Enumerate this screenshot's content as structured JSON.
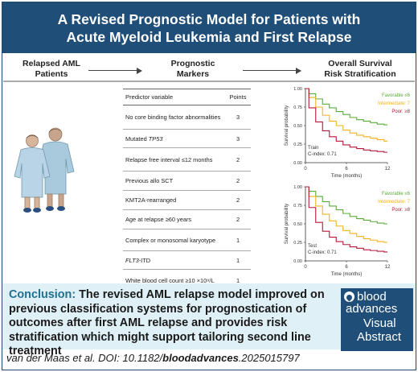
{
  "header": {
    "title_line1": "A Revised Prognostic Model for Patients with",
    "title_line2": "Acute Myeloid Leukemia and First Relapse"
  },
  "columns": {
    "left": [
      "Relapsed AML",
      "Patients"
    ],
    "middle": [
      "Prognostic",
      "Markers"
    ],
    "right": [
      "Overall Survival",
      "Risk Stratification"
    ]
  },
  "table": {
    "head_variable": "Predictor variable",
    "head_points": "Points",
    "rows": [
      {
        "name": "No core binding factor abnormalities",
        "points": "3"
      },
      {
        "name": "Mutated TP53",
        "points": "3"
      },
      {
        "name": "Relapse free interval ≤12 months",
        "points": "2"
      },
      {
        "name": "Previous allo SCT",
        "points": "2"
      },
      {
        "name": "KMT2A-rearranged",
        "points": "2"
      },
      {
        "name": "Age at relapse ≥60 years",
        "points": "2"
      },
      {
        "name": "Complex or monosomal karyotype",
        "points": "1"
      },
      {
        "name": "FLT3-ITD",
        "points": "1"
      },
      {
        "name": "White blood cell count ≥10 ×10⁹/L",
        "points": "1"
      }
    ]
  },
  "chart_data": [
    {
      "type": "line",
      "panel": "Train",
      "annotation": "C-index: 0.71",
      "xlabel": "Time (months)",
      "ylabel": "Survival probability",
      "xlim": [
        0,
        12
      ],
      "ylim": [
        0,
        1.0
      ],
      "xticks": [
        "0",
        "6",
        "12"
      ],
      "yticks": [
        "0.00",
        "0.25",
        "0.50",
        "0.75",
        "1.00"
      ],
      "legend_position": "top-right",
      "series": [
        {
          "name": "Favorable ≤6",
          "color": "#5aac3a",
          "x": [
            0,
            1,
            2,
            3,
            4,
            5,
            6,
            7,
            8,
            9,
            10,
            11,
            12
          ],
          "y": [
            1.0,
            0.93,
            0.86,
            0.79,
            0.74,
            0.69,
            0.65,
            0.61,
            0.58,
            0.56,
            0.54,
            0.52,
            0.51
          ]
        },
        {
          "name": "Intermediate: 7",
          "color": "#f2b21d",
          "x": [
            0,
            1,
            2,
            3,
            4,
            5,
            6,
            7,
            8,
            9,
            10,
            11,
            12
          ],
          "y": [
            1.0,
            0.88,
            0.75,
            0.64,
            0.56,
            0.5,
            0.44,
            0.4,
            0.37,
            0.35,
            0.33,
            0.31,
            0.29
          ]
        },
        {
          "name": "Poor: ≥8",
          "color": "#b5173a",
          "x": [
            0,
            1,
            2,
            3,
            4,
            5,
            6,
            7,
            8,
            9,
            10,
            11,
            12
          ],
          "y": [
            1.0,
            0.74,
            0.55,
            0.43,
            0.35,
            0.29,
            0.24,
            0.21,
            0.19,
            0.17,
            0.16,
            0.15,
            0.14
          ]
        }
      ]
    },
    {
      "type": "line",
      "panel": "Test",
      "annotation": "C-index: 0.71",
      "xlabel": "Time (months)",
      "ylabel": "Survival probability",
      "xlim": [
        0,
        12
      ],
      "ylim": [
        0,
        1.0
      ],
      "xticks": [
        "0",
        "6",
        "12"
      ],
      "yticks": [
        "0.00",
        "0.25",
        "0.50",
        "0.75",
        "1.00"
      ],
      "legend_position": "top-right",
      "series": [
        {
          "name": "Favorable ≤6",
          "color": "#5aac3a",
          "x": [
            0,
            1,
            2,
            3,
            4,
            5,
            6,
            7,
            8,
            9,
            10,
            11,
            12
          ],
          "y": [
            1.0,
            0.94,
            0.87,
            0.8,
            0.74,
            0.69,
            0.64,
            0.6,
            0.57,
            0.55,
            0.53,
            0.51,
            0.5
          ]
        },
        {
          "name": "Intermediate: 7",
          "color": "#f2b21d",
          "x": [
            0,
            1,
            2,
            3,
            4,
            5,
            6,
            7,
            8,
            9,
            10,
            11,
            12
          ],
          "y": [
            1.0,
            0.87,
            0.74,
            0.63,
            0.54,
            0.47,
            0.41,
            0.37,
            0.33,
            0.3,
            0.28,
            0.26,
            0.25
          ]
        },
        {
          "name": "Poor: ≥8",
          "color": "#b5173a",
          "x": [
            0,
            1,
            2,
            3,
            4,
            5,
            6,
            7,
            8,
            9,
            10,
            11,
            12
          ],
          "y": [
            1.0,
            0.72,
            0.52,
            0.4,
            0.32,
            0.26,
            0.22,
            0.19,
            0.17,
            0.15,
            0.14,
            0.13,
            0.12
          ]
        }
      ]
    }
  ],
  "conclusion": {
    "label": "Conclusion:",
    "text": " The revised AML relapse model improved on previous classification systems for prognostication of outcomes after first AML relapse and provides risk stratification which might support tailoring second line treatment"
  },
  "citation": {
    "authors": "van der Maas et al. DOI: 10.1182/",
    "journal": "bloodadvances",
    "suffix": ".2025015797"
  },
  "badge": {
    "line1": "blood",
    "line2": "advances",
    "line3": "Visual",
    "line4": "Abstract"
  },
  "colors": {
    "header": "#1f4e79",
    "conclusion_bg": "#dff0f6",
    "favorable": "#5aac3a",
    "intermediate": "#f2b21d",
    "poor": "#b5173a"
  }
}
